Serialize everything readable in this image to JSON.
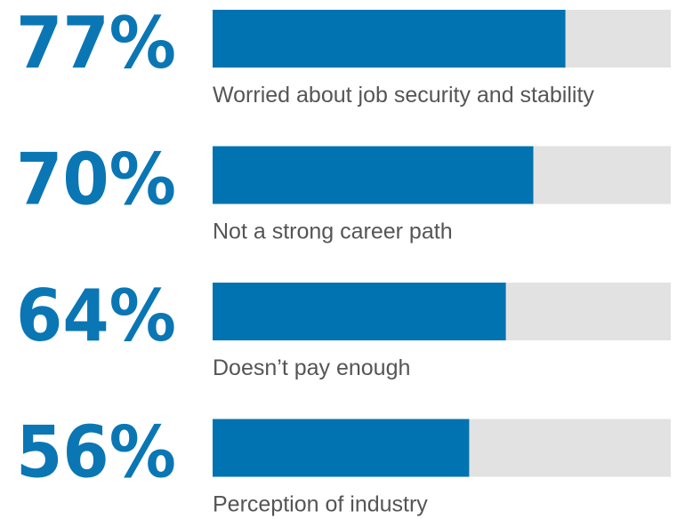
{
  "chart_data": {
    "type": "bar",
    "orientation": "horizontal",
    "categories": [
      "Worried about job security and stability",
      "Not a strong career path",
      "Doesn’t pay enough",
      "Perception of industry"
    ],
    "values": [
      77,
      70,
      64,
      56
    ],
    "value_labels": [
      "77%",
      "70%",
      "64%",
      "56%"
    ],
    "color": "#0073b0",
    "track_color": "#e2e2e2",
    "xlim": [
      0,
      100
    ]
  }
}
